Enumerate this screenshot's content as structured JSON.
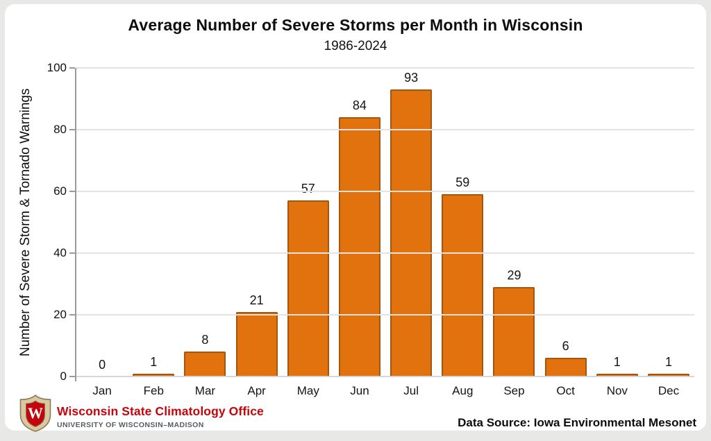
{
  "colors": {
    "page_background": "#e8e8e6",
    "card_background": "#ffffff",
    "bar_fill": "#e2720e",
    "bar_border": "#a3560e",
    "gridline": "#e3e3e3",
    "axis_line": "#9a9a9a",
    "text": "#111111",
    "org_name_red": "#c5050c",
    "org_sub_gray": "#585c62",
    "crest_tan": "#d9c9a2",
    "crest_red": "#c5050c"
  },
  "chart_data": {
    "type": "bar",
    "title": "Average Number of Severe Storms per Month in Wisconsin",
    "subtitle": "1986-2024",
    "ylabel": "Number of Severe Storm & Tornado Warnings",
    "xlabel": "",
    "categories": [
      "Jan",
      "Feb",
      "Mar",
      "Apr",
      "May",
      "Jun",
      "Jul",
      "Aug",
      "Sep",
      "Oct",
      "Nov",
      "Dec"
    ],
    "values": [
      0,
      1,
      8,
      21,
      57,
      84,
      93,
      59,
      29,
      6,
      1,
      1
    ],
    "ylim": [
      0,
      100
    ],
    "yticks": [
      0,
      20,
      40,
      60,
      80,
      100
    ],
    "grid": "horizontal",
    "legend": "none",
    "value_labels_shown": true
  },
  "footer": {
    "logo": {
      "crest_letter": "W",
      "org_name": "Wisconsin State Climatology Office",
      "org_sub": "UNIVERSITY OF WISCONSIN–MADISON"
    },
    "data_source": "Data Source: Iowa Environmental Mesonet"
  }
}
